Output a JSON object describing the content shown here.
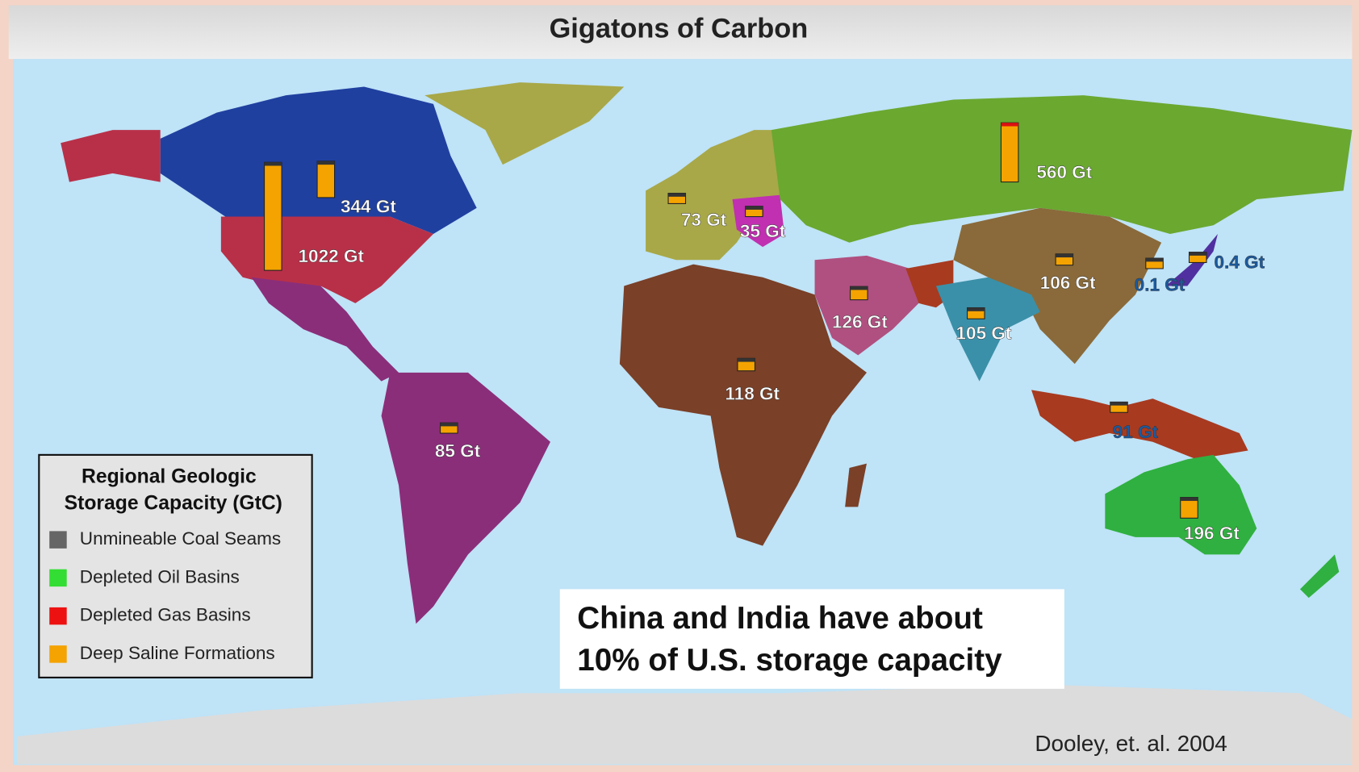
{
  "title": "Gigatons of Carbon",
  "regions": [
    {
      "label": "1022 Gt",
      "value": 1022
    },
    {
      "label": "344 Gt",
      "value": 344
    },
    {
      "label": "73 Gt",
      "value": 73
    },
    {
      "label": "35 Gt",
      "value": 35
    },
    {
      "label": "560 Gt",
      "value": 560
    },
    {
      "label": "106 Gt",
      "value": 106
    },
    {
      "label": "0.1 Gt",
      "value": 0.1
    },
    {
      "label": "0.4 Gt",
      "value": 0.4
    },
    {
      "label": "126 Gt",
      "value": 126
    },
    {
      "label": "105 Gt",
      "value": 105
    },
    {
      "label": "118 Gt",
      "value": 118
    },
    {
      "label": "85 Gt",
      "value": 85
    },
    {
      "label": "91 Gt",
      "value": 91
    },
    {
      "label": "196 Gt",
      "value": 196
    }
  ],
  "legend": {
    "title_lines": [
      "Regional Geologic",
      "Storage Capacity (GtC)"
    ],
    "items": [
      {
        "label": "Unmineable Coal Seams",
        "color": "#666666"
      },
      {
        "label": "Depleted Oil Basins",
        "color": "#33dd33"
      },
      {
        "label": "Depleted Gas Basins",
        "color": "#ee1111"
      },
      {
        "label": "Deep Saline Formations",
        "color": "#f5a300"
      }
    ]
  },
  "annotation": {
    "lines": [
      "China and India have about",
      "10% of U.S. storage capacity"
    ]
  },
  "credit": "Dooley, et. al. 2004"
}
